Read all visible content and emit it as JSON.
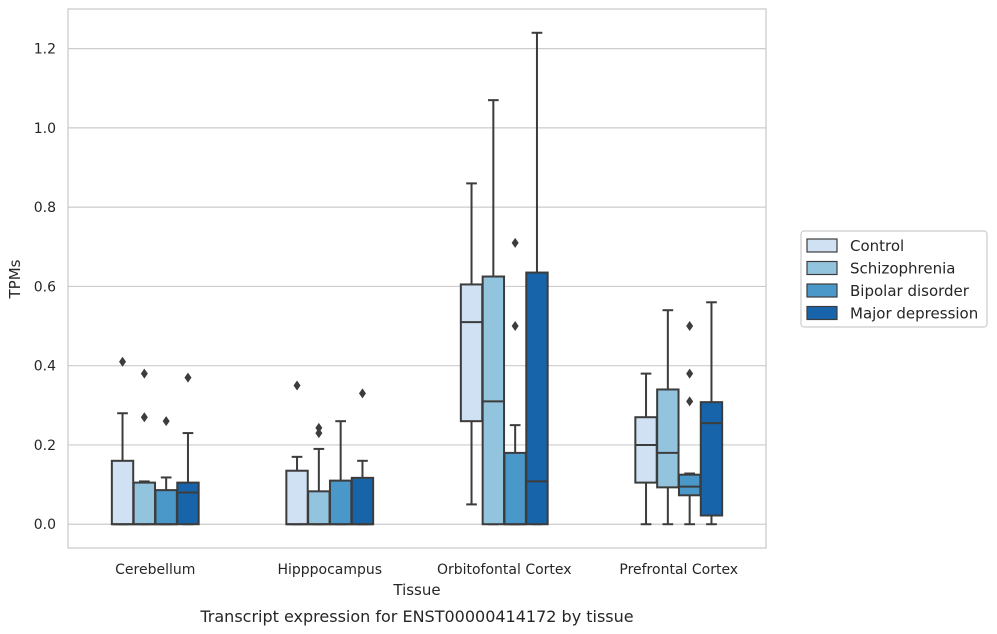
{
  "caption": "Transcript expression for ENST00000414172 by tissue",
  "colors": {
    "Control": "#cfe1f2",
    "Schizophrenia": "#93c4de",
    "Bipolar disorder": "#4a98c9",
    "Major depression": "#1764ab",
    "line": "#3c3c3c",
    "grid": "#cccccc",
    "frame": "#cccccc"
  },
  "chart_data": {
    "type": "box",
    "xlabel": "Tissue",
    "ylabel": "TPMs",
    "ylim": [
      -0.06,
      1.3
    ],
    "yticks": [
      0.0,
      0.2,
      0.4,
      0.6,
      0.8,
      1.0,
      1.2
    ],
    "ytick_labels": [
      "0.0",
      "0.2",
      "0.4",
      "0.6",
      "0.8",
      "1.0",
      "1.2"
    ],
    "grid": "horizontal",
    "legend_position": "right",
    "categories": [
      "Cerebellum",
      "Hipppocampus",
      "Orbitofontal Cortex",
      "Prefrontal Cortex"
    ],
    "series": [
      {
        "name": "Control",
        "boxes": [
          {
            "whislo": 0.0,
            "q1": 0.0,
            "med": 0.0,
            "q3": 0.16,
            "whishi": 0.28,
            "fliers": [
              0.41
            ]
          },
          {
            "whislo": 0.0,
            "q1": 0.0,
            "med": 0.0,
            "q3": 0.135,
            "whishi": 0.17,
            "fliers": [
              0.35
            ]
          },
          {
            "whislo": 0.05,
            "q1": 0.26,
            "med": 0.51,
            "q3": 0.605,
            "whishi": 0.86,
            "fliers": []
          },
          {
            "whislo": 0.0,
            "q1": 0.105,
            "med": 0.2,
            "q3": 0.27,
            "whishi": 0.38,
            "fliers": []
          }
        ]
      },
      {
        "name": "Schizophrenia",
        "boxes": [
          {
            "whislo": 0.0,
            "q1": 0.0,
            "med": 0.0,
            "q3": 0.105,
            "whishi": 0.108,
            "fliers": [
              0.27,
              0.38
            ]
          },
          {
            "whislo": 0.0,
            "q1": 0.0,
            "med": 0.0,
            "q3": 0.083,
            "whishi": 0.19,
            "fliers": [
              0.23,
              0.243
            ]
          },
          {
            "whislo": 0.0,
            "q1": 0.0,
            "med": 0.31,
            "q3": 0.625,
            "whishi": 1.07,
            "fliers": []
          },
          {
            "whislo": 0.0,
            "q1": 0.093,
            "med": 0.18,
            "q3": 0.34,
            "whishi": 0.54,
            "fliers": []
          }
        ]
      },
      {
        "name": "Bipolar disorder",
        "boxes": [
          {
            "whislo": 0.0,
            "q1": 0.0,
            "med": 0.0,
            "q3": 0.086,
            "whishi": 0.118,
            "fliers": [
              0.26
            ]
          },
          {
            "whislo": 0.0,
            "q1": 0.0,
            "med": 0.0,
            "q3": 0.11,
            "whishi": 0.26,
            "fliers": []
          },
          {
            "whislo": 0.0,
            "q1": 0.0,
            "med": 0.0,
            "q3": 0.18,
            "whishi": 0.25,
            "fliers": [
              0.5,
              0.71
            ]
          },
          {
            "whislo": 0.0,
            "q1": 0.073,
            "med": 0.095,
            "q3": 0.125,
            "whishi": 0.128,
            "fliers": [
              0.31,
              0.38,
              0.5
            ]
          }
        ]
      },
      {
        "name": "Major depression",
        "boxes": [
          {
            "whislo": 0.0,
            "q1": 0.0,
            "med": 0.08,
            "q3": 0.105,
            "whishi": 0.23,
            "fliers": [
              0.37
            ]
          },
          {
            "whislo": 0.0,
            "q1": 0.0,
            "med": 0.0,
            "q3": 0.117,
            "whishi": 0.16,
            "fliers": [
              0.33
            ]
          },
          {
            "whislo": 0.0,
            "q1": 0.0,
            "med": 0.108,
            "q3": 0.635,
            "whishi": 1.24,
            "fliers": []
          },
          {
            "whislo": 0.0,
            "q1": 0.022,
            "med": 0.255,
            "q3": 0.308,
            "whishi": 0.56,
            "fliers": []
          }
        ]
      }
    ]
  }
}
